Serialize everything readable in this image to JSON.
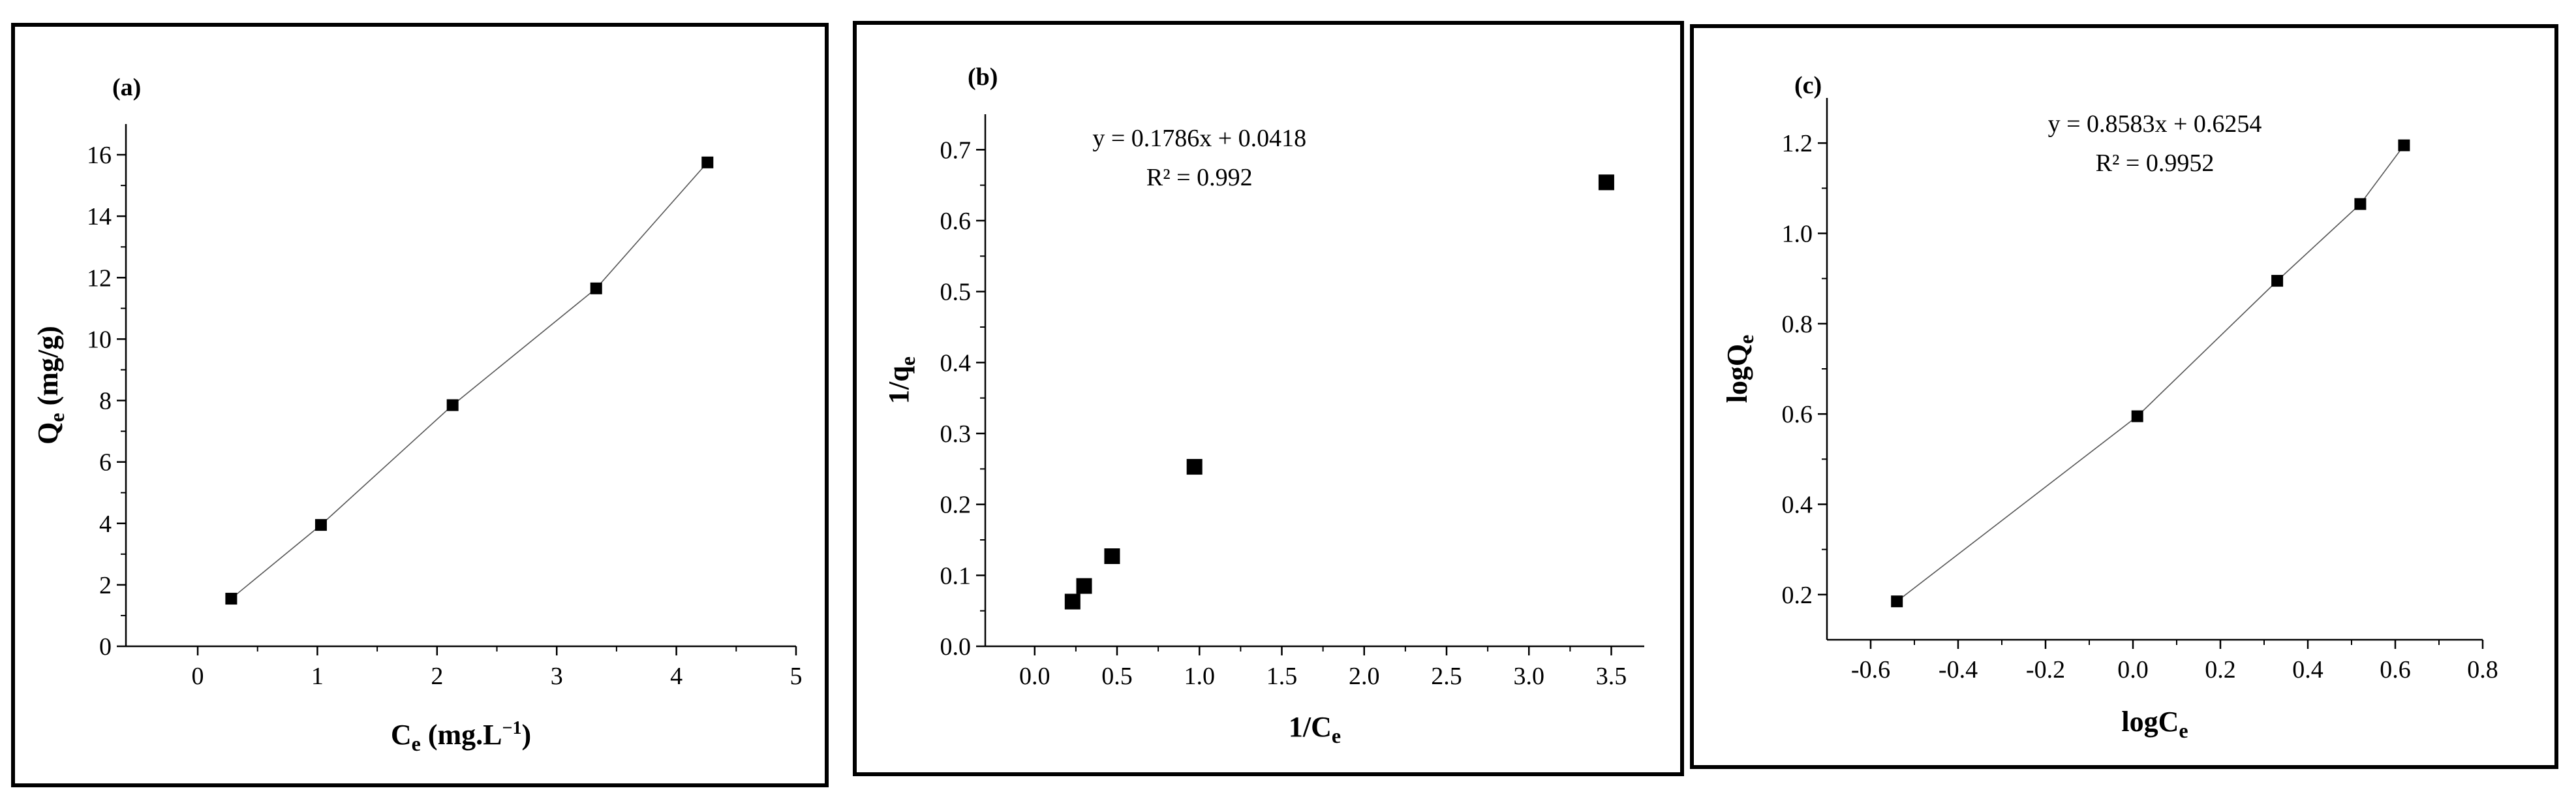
{
  "chart_data": [
    {
      "type": "line",
      "panel_label": "(a)",
      "title": "",
      "xlabel": {
        "base": "C",
        "sub": "e",
        "rest": " (mg.L",
        "sup": "−1",
        "close": ")"
      },
      "ylabel": {
        "base": "Q",
        "sub": "e",
        "rest": " (mg/g)",
        "sup": "",
        "close": ""
      },
      "xlim": [
        -0.6,
        5.0
      ],
      "ylim": [
        0,
        17
      ],
      "x_ticks": [
        0,
        1,
        2,
        3,
        4,
        5
      ],
      "x_tick_labels": [
        "0",
        "1",
        "2",
        "3",
        "4",
        "5"
      ],
      "y_ticks": [
        0,
        2,
        4,
        6,
        8,
        10,
        12,
        14,
        16
      ],
      "y_tick_labels": [
        "0",
        "2",
        "4",
        "6",
        "8",
        "10",
        "12",
        "14",
        "16"
      ],
      "grid": false,
      "series": [
        {
          "x": [
            0.28,
            1.03,
            2.13,
            3.33,
            4.26
          ],
          "y": [
            1.55,
            3.95,
            7.85,
            11.65,
            15.75
          ],
          "marker": "square",
          "line": true,
          "marker_size": 6
        }
      ]
    },
    {
      "type": "scatter",
      "panel_label": "(b)",
      "title": "",
      "equation": "y = 0.1786x + 0.0418",
      "r2": "R² = 0.992",
      "equation_anchor": [
        1.0,
        0.705
      ],
      "xlabel": {
        "base": "1/C",
        "sub": "e",
        "rest": "",
        "sup": "",
        "close": ""
      },
      "ylabel": {
        "base": "1/q",
        "sub": "e",
        "rest": "",
        "sup": "",
        "close": ""
      },
      "xlim": [
        -0.3,
        3.7
      ],
      "ylim": [
        0,
        0.75
      ],
      "x_ticks": [
        0.0,
        0.5,
        1.0,
        1.5,
        2.0,
        2.5,
        3.0,
        3.5
      ],
      "x_tick_labels": [
        "0.0",
        "0.5",
        "1.0",
        "1.5",
        "2.0",
        "2.5",
        "3.0",
        "3.5"
      ],
      "y_ticks": [
        0.0,
        0.1,
        0.2,
        0.3,
        0.4,
        0.5,
        0.6,
        0.7
      ],
      "y_tick_labels": [
        "0.0",
        "0.1",
        "0.2",
        "0.3",
        "0.4",
        "0.5",
        "0.6",
        "0.7"
      ],
      "grid": false,
      "series": [
        {
          "x": [
            0.23,
            0.3,
            0.47,
            0.97,
            3.47
          ],
          "y": [
            0.063,
            0.085,
            0.127,
            0.253,
            0.654
          ],
          "marker": "square",
          "line": false,
          "marker_size": 9
        }
      ]
    },
    {
      "type": "line",
      "panel_label": "(c)",
      "title": "",
      "equation": "y = 0.8583x + 0.6254",
      "r2": "R² = 0.9952",
      "equation_anchor": [
        0.05,
        1.225
      ],
      "xlabel": {
        "base": "logC",
        "sub": "e",
        "rest": "",
        "sup": "",
        "close": ""
      },
      "ylabel": {
        "base": "logQ",
        "sub": "e",
        "rest": "",
        "sup": "",
        "close": ""
      },
      "xlim": [
        -0.7,
        0.8
      ],
      "ylim": [
        0.1,
        1.3
      ],
      "x_ticks": [
        -0.6,
        -0.4,
        -0.2,
        0.0,
        0.2,
        0.4,
        0.6,
        0.8
      ],
      "x_tick_labels": [
        "-0.6",
        "-0.4",
        "-0.2",
        "0.0",
        "0.2",
        "0.4",
        "0.6",
        "0.8"
      ],
      "y_ticks": [
        0.2,
        0.4,
        0.6,
        0.8,
        1.0,
        1.2
      ],
      "y_tick_labels": [
        "0.2",
        "0.4",
        "0.6",
        "0.8",
        "1.0",
        "1.2"
      ],
      "grid": false,
      "series": [
        {
          "x": [
            -0.54,
            0.01,
            0.33,
            0.52,
            0.62
          ],
          "y": [
            0.185,
            0.595,
            0.895,
            1.065,
            1.195
          ],
          "marker": "square",
          "line": true,
          "marker_size": 6
        }
      ]
    }
  ]
}
